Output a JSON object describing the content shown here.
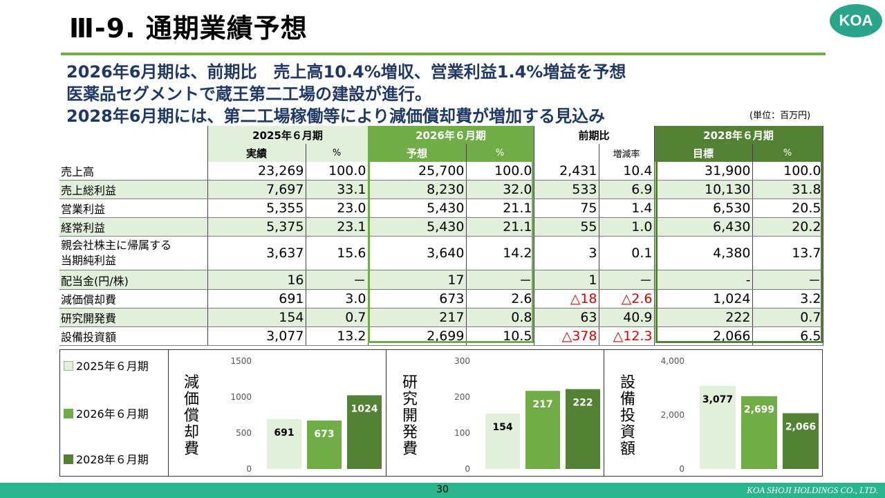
{
  "title": "Ⅲ-9. 通期業績予想",
  "logo": "KOA",
  "headlines": [
    "2026年6月期は、前期比　売上高10.4%増収、営業利益1.4%増益を予想",
    "医薬品セグメントで蔵王第二工場の建設が進行。",
    "2028年6月期には、第二工場稼働等により減価償却費が増加する見込み"
  ],
  "unit_note": "(単位：百万円)",
  "table": {
    "periods": [
      "2025年６月期",
      "2026年６月期",
      "前期比",
      "2028年６月期"
    ],
    "subheaders": [
      "実績",
      "%",
      "予想",
      "%",
      "",
      "増減率",
      "目標",
      "%"
    ],
    "rows": [
      {
        "label": "売上高",
        "values": [
          "23,269",
          "100.0",
          "25,700",
          "100.0",
          "2,431",
          "10.4",
          "31,900",
          "100.0"
        ]
      },
      {
        "label": "売上総利益",
        "values": [
          "7,697",
          "33.1",
          "8,230",
          "32.0",
          "533",
          "6.9",
          "10,130",
          "31.8"
        ]
      },
      {
        "label": "営業利益",
        "values": [
          "5,355",
          "23.0",
          "5,430",
          "21.1",
          "75",
          "1.4",
          "6,530",
          "20.5"
        ]
      },
      {
        "label": "経常利益",
        "values": [
          "5,375",
          "23.1",
          "5,430",
          "21.1",
          "55",
          "1.0",
          "6,430",
          "20.2"
        ]
      },
      {
        "label_line1": "親会社株主に帰属する",
        "label_line2": "当期純利益",
        "values": [
          "3,637",
          "15.6",
          "3,640",
          "14.2",
          "3",
          "0.1",
          "4,380",
          "13.7"
        ]
      },
      {
        "label": "配当金(円/株)",
        "values": [
          "16",
          "－",
          "17",
          "－",
          "1",
          "－",
          "-",
          "－"
        ]
      },
      {
        "label": "減価償却費",
        "values": [
          "691",
          "3.0",
          "673",
          "2.6",
          "△18",
          "△2.6",
          "1,024",
          "3.2"
        ]
      },
      {
        "label": "研究開発費",
        "values": [
          "154",
          "0.7",
          "217",
          "0.8",
          "63",
          "40.9",
          "222",
          "0.7"
        ]
      },
      {
        "label": "設備投資額",
        "values": [
          "3,077",
          "13.2",
          "2,699",
          "10.5",
          "△378",
          "△12.3",
          "2,066",
          "6.5"
        ]
      }
    ]
  },
  "legend": [
    "2025年６月期",
    "2026年６月期",
    "2028年６月期"
  ],
  "colors": {
    "fy2025": "#e2efda",
    "fy2026": "#70ad47",
    "fy2028": "#548235",
    "negative": "#e00000",
    "footer": "#2bb58c"
  },
  "chart_data": [
    {
      "type": "bar",
      "title": "減価償却費",
      "categories": [
        "2025年６月期",
        "2026年６月期",
        "2028年６月期"
      ],
      "values": [
        691,
        673,
        1024
      ],
      "value_labels": [
        "691",
        "673",
        "1024"
      ],
      "ylim": [
        0,
        1500
      ],
      "yticks": [
        0,
        500,
        1000,
        1500
      ],
      "ytick_labels": [
        "0",
        "500",
        "1000",
        "1500"
      ],
      "grid": false
    },
    {
      "type": "bar",
      "title": "研究開発費",
      "categories": [
        "2025年６月期",
        "2026年６月期",
        "2028年６月期"
      ],
      "values": [
        154,
        217,
        222
      ],
      "value_labels": [
        "154",
        "217",
        "222"
      ],
      "ylim": [
        0,
        300
      ],
      "yticks": [
        0,
        100,
        200,
        300
      ],
      "ytick_labels": [
        "0",
        "100",
        "200",
        "300"
      ],
      "grid": false
    },
    {
      "type": "bar",
      "title": "設備投資額",
      "categories": [
        "2025年６月期",
        "2026年６月期",
        "2028年６月期"
      ],
      "values": [
        3077,
        2699,
        2066
      ],
      "value_labels": [
        "3,077",
        "2,699",
        "2,066"
      ],
      "ylim": [
        0,
        4000
      ],
      "yticks": [
        0,
        2000,
        4000
      ],
      "ytick_labels": [
        "0",
        "2,000",
        "4,000"
      ],
      "grid": false
    }
  ],
  "footer": {
    "page": "30",
    "company": "KOA SHOJI HOLDINGS CO., LTD."
  }
}
